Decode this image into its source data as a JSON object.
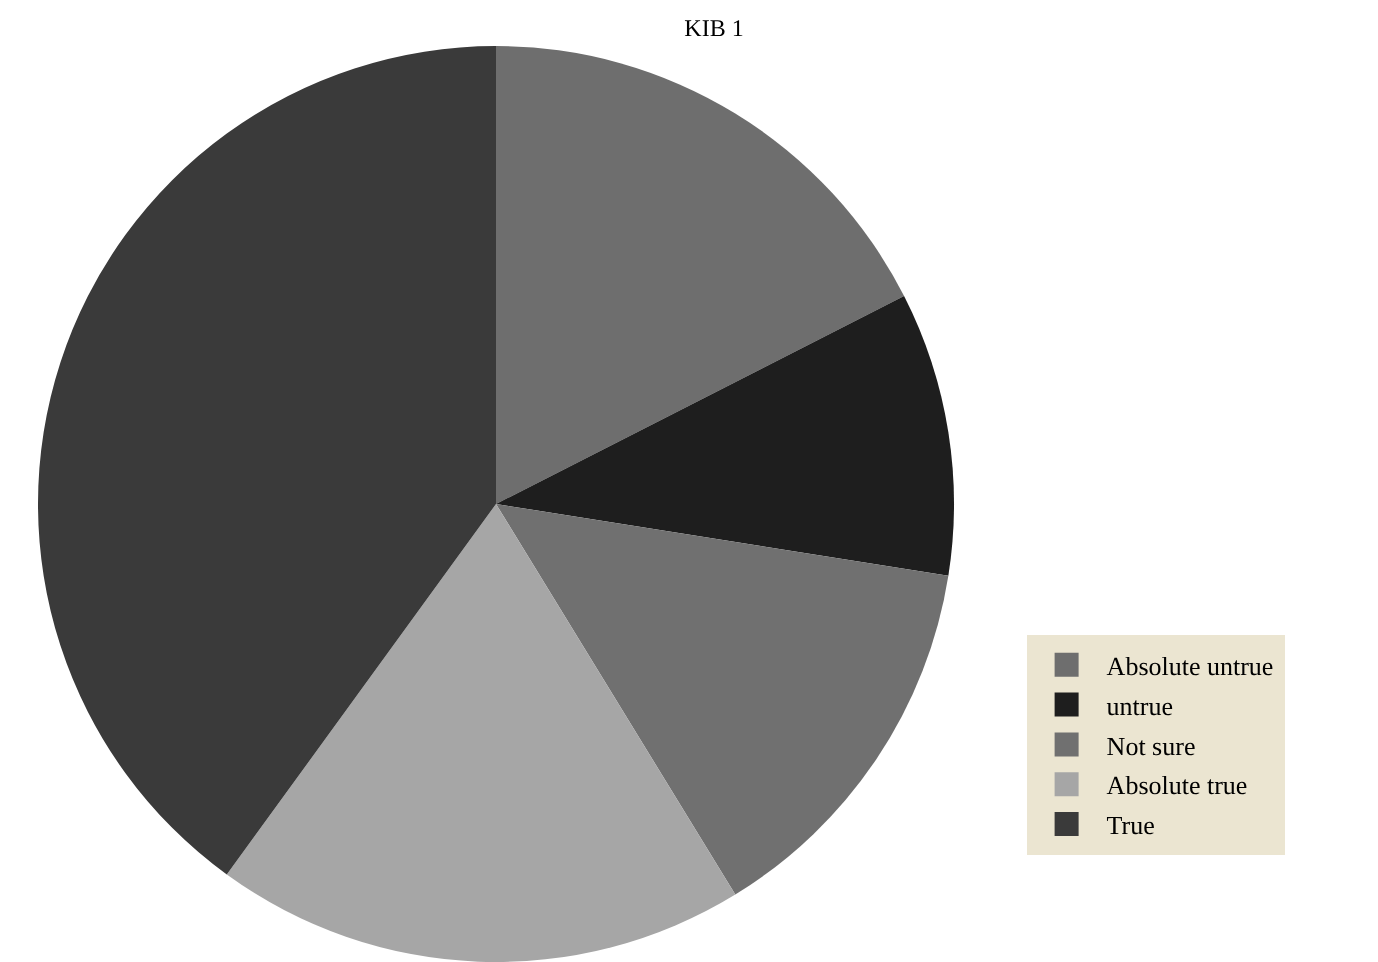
{
  "chart_data": {
    "type": "pie",
    "title": "KIB 1",
    "categories": [
      "Absolute untrue",
      "untrue",
      "Not sure",
      "Absolute true",
      "True"
    ],
    "values": [
      17.5,
      10,
      13.75,
      18.75,
      40
    ],
    "colors": [
      "#6e6e6e",
      "#1e1e1e",
      "#707070",
      "#a6a6a6",
      "#3a3a3a"
    ],
    "legend": "bottom right"
  }
}
